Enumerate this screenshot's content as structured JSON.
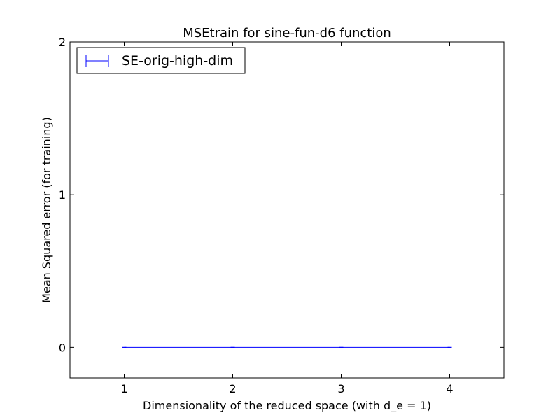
{
  "chart_data": {
    "type": "line",
    "title": "MSEtrain for sine-fun-d6 function",
    "xlabel": "Dimensionality of the reduced space (with d_e = 1)",
    "ylabel": "Mean Squared error (for training)",
    "xlim": [
      0.5,
      4.5
    ],
    "ylim": [
      -0.2,
      2
    ],
    "xticks": [
      1,
      2,
      3,
      4
    ],
    "xtick_labels": [
      "1",
      "2",
      "3",
      "4"
    ],
    "yticks": [
      0,
      1,
      2
    ],
    "ytick_labels": [
      "0",
      "1",
      "2"
    ],
    "grid": false,
    "legend_position": "top-left",
    "error_bars": true,
    "series": [
      {
        "name": "SE-orig-high-dim",
        "color": "#0000ff",
        "x": [
          1,
          2,
          3,
          4
        ],
        "y": [
          0,
          0,
          0,
          0
        ],
        "yerr": [
          0,
          0,
          0,
          0
        ]
      }
    ]
  }
}
